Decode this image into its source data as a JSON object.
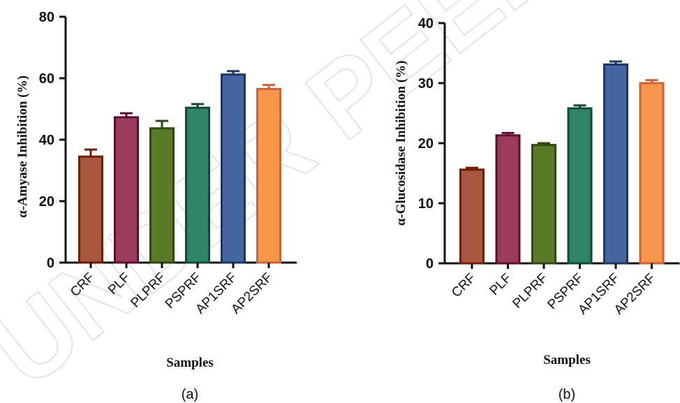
{
  "watermark": {
    "text": "UNDER PEER REVIEW"
  },
  "chart_data": [
    {
      "type": "bar",
      "panel_label": "(a)",
      "xlabel": "Samples",
      "ylabel": "α-Amyase Inhibition (%)",
      "categories": [
        "CRF",
        "PLF",
        "PLPRF",
        "PSPRF",
        "AP1SRF",
        "AP2SRF"
      ],
      "values": [
        34.5,
        47.3,
        43.7,
        50.4,
        61.2,
        56.5
      ],
      "errors": [
        2.3,
        1.3,
        2.4,
        1.2,
        1.1,
        1.3
      ],
      "ylim": [
        0,
        80
      ],
      "yticks": [
        "0",
        "20",
        "40",
        "60",
        "80"
      ],
      "ytick_values": [
        0,
        20,
        40,
        60,
        80
      ],
      "colors": {
        "fill": [
          "#a6573c",
          "#9b3a5d",
          "#5a7a2a",
          "#2e8567",
          "#4565a0",
          "#f7964a"
        ],
        "edge": [
          "#6e1e06",
          "#5c0e2f",
          "#2f4a10",
          "#134a35",
          "#1d3560",
          "#c9633a"
        ]
      },
      "grid": false
    },
    {
      "type": "bar",
      "panel_label": "(b)",
      "xlabel": "Samples",
      "ylabel": "α-Glucosidase Inhibition (%)",
      "categories": [
        "CRF",
        "PLF",
        "PLPRF",
        "PSPRF",
        "AP1SRF",
        "AP2SRF"
      ],
      "values": [
        15.6,
        21.3,
        19.7,
        25.8,
        33.1,
        30.0
      ],
      "errors": [
        0.3,
        0.4,
        0.3,
        0.5,
        0.5,
        0.5
      ],
      "ylim": [
        0,
        40
      ],
      "yticks": [
        "0",
        "10",
        "20",
        "30",
        "40"
      ],
      "ytick_values": [
        0,
        10,
        20,
        30,
        40
      ],
      "colors": {
        "fill": [
          "#a6573c",
          "#9b3a5d",
          "#5a7a2a",
          "#2e8567",
          "#4565a0",
          "#f7964a"
        ],
        "edge": [
          "#6e1e06",
          "#5c0e2f",
          "#2f4a10",
          "#134a35",
          "#1d3560",
          "#c9633a"
        ]
      },
      "grid": false
    }
  ]
}
